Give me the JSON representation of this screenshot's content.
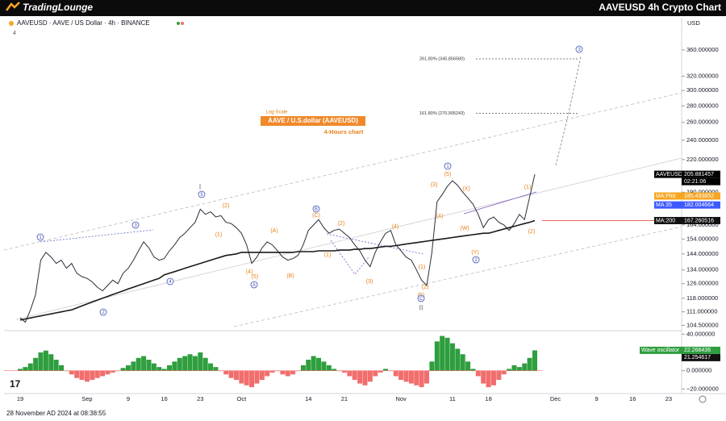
{
  "header": {
    "logo": "TradingLounge",
    "title": "AAVEUSD 4h Crypto Chart"
  },
  "footer": {
    "timestamp": "28 November AD 2024 at 08:38:55"
  },
  "chart_data": {
    "type": "line",
    "symbol": "AAVEUSD · AAVE / US Dollar · 4h · BINANCE",
    "indicator_count": "4",
    "currency": "USD",
    "annotations": {
      "scale": "Log-Scale",
      "subtitle": "AAVE / U.S.dollar (AAVEUSD)",
      "timeframe": "4-Hours chart"
    },
    "log_scale": true,
    "grid": false,
    "categories": [
      "19",
      null,
      null,
      null,
      null,
      null,
      null,
      null,
      null,
      null,
      null,
      null,
      null,
      "Sep",
      null,
      null,
      null,
      null,
      null,
      null,
      null,
      "9",
      null,
      null,
      null,
      null,
      null,
      null,
      "16",
      null,
      null,
      null,
      null,
      null,
      null,
      "23",
      null,
      null,
      null,
      null,
      null,
      null,
      null,
      "Oct",
      null,
      null,
      null,
      null,
      null,
      null,
      null,
      null,
      null,
      null,
      null,
      null,
      "14",
      null,
      null,
      null,
      null,
      null,
      null,
      "21",
      null,
      null,
      null,
      null,
      null,
      null,
      null,
      null,
      null,
      null,
      "Nov",
      null,
      null,
      null,
      null,
      null,
      null,
      null,
      null,
      null,
      "11",
      null,
      null,
      null,
      null,
      null,
      null,
      "18",
      null,
      null,
      null,
      null,
      null,
      null,
      null,
      null,
      null,
      null,
      null,
      null,
      "Dec",
      null,
      null,
      null,
      null,
      null,
      null,
      null,
      "9",
      null,
      null,
      null,
      null,
      null,
      null,
      "16",
      null,
      null,
      null,
      null,
      null,
      null,
      "23"
    ],
    "series": [
      {
        "name": "AAVEUSD",
        "color": "#2a2e39",
        "values": [
          108,
          106,
          112,
          120,
          140,
          145,
          142,
          138,
          140,
          135,
          138,
          132,
          130,
          129,
          127,
          124,
          122,
          125,
          128,
          126,
          132,
          135,
          140,
          146,
          152,
          148,
          142,
          140,
          141,
          146,
          150,
          155,
          158,
          162,
          166,
          176,
          172,
          174,
          170,
          171,
          166,
          165,
          162,
          158,
          150,
          138,
          142,
          148,
          152,
          150,
          146,
          142,
          140,
          141,
          143,
          150,
          160,
          164,
          168,
          162,
          158,
          160,
          161,
          158,
          155,
          150,
          146,
          140,
          136,
          145,
          152,
          158,
          160,
          150,
          146,
          142,
          140,
          134,
          128,
          125,
          145,
          182,
          188,
          195,
          200,
          196,
          190,
          185,
          180,
          172,
          162,
          168,
          170,
          166,
          164,
          160,
          165,
          172,
          168,
          186,
          205.881457,
          null,
          null,
          null,
          null,
          null,
          null,
          null,
          null,
          null,
          null,
          null,
          null,
          null,
          null,
          null,
          null,
          null,
          null,
          null,
          null,
          null,
          null,
          null,
          null,
          null,
          null
        ]
      },
      {
        "name": "MA:200",
        "color": "#1a1a1a",
        "values": [
          107,
          107.5,
          108,
          108.5,
          109,
          109.5,
          110,
          110.5,
          111,
          111.5,
          112,
          113,
          114,
          115,
          116,
          117,
          118,
          119,
          120,
          121,
          122,
          123,
          124,
          125,
          126,
          127,
          128,
          129,
          131,
          132,
          133,
          134,
          135,
          136,
          137,
          138,
          139,
          140,
          141,
          142,
          143,
          143.5,
          144,
          145,
          145,
          145,
          145,
          145,
          145,
          145,
          145,
          145,
          145,
          145,
          145.5,
          145.5,
          145.5,
          145.5,
          146,
          146,
          146,
          146,
          146.5,
          146.5,
          146.5,
          147,
          147,
          147.5,
          147.5,
          148,
          148.5,
          149,
          149,
          149.5,
          150,
          150.5,
          151,
          151.5,
          152,
          152.5,
          153,
          153.5,
          154,
          154.5,
          155,
          155.5,
          156,
          156.5,
          157,
          157.5,
          158,
          158,
          159,
          160,
          161,
          162,
          163,
          164,
          165,
          166,
          167.260516,
          null,
          null,
          null,
          null,
          null,
          null,
          null,
          null,
          null,
          null,
          null,
          null,
          null,
          null,
          null,
          null,
          null,
          null,
          null,
          null,
          null,
          null,
          null,
          null,
          null,
          null
        ]
      }
    ],
    "price_tags": [
      {
        "name": "MA:Plot",
        "value": 185.433852,
        "color": "#f5a623"
      },
      {
        "name": "MA 35",
        "value": 182.004664,
        "color": "#3d5afe"
      }
    ],
    "countdown": "02:21:06",
    "ylim": [
      102,
      416
    ],
    "yticks": [
      {
        "value": 360,
        "label": "360.000000"
      },
      {
        "value": 320,
        "label": "320.000000"
      },
      {
        "value": 300,
        "label": "300.000000"
      },
      {
        "value": 280,
        "label": "280.000000"
      },
      {
        "value": 260,
        "label": "260.000000"
      },
      {
        "value": 240,
        "label": "240.000000"
      },
      {
        "value": 220,
        "label": "220.000000"
      },
      {
        "value": 190,
        "label": "190.000000"
      },
      {
        "value": 164,
        "label": "164.000000"
      },
      {
        "value": 154,
        "label": "154.000000"
      },
      {
        "value": 144,
        "label": "144.000000"
      },
      {
        "value": 134,
        "label": "134.000000"
      },
      {
        "value": 126,
        "label": "126.000000"
      },
      {
        "value": 118,
        "label": "118.000000"
      },
      {
        "value": 111,
        "label": "111.000000"
      },
      {
        "value": 104.5,
        "label": "104.500000"
      }
    ],
    "fib_levels": [
      {
        "value": 345.85658,
        "label": "261.80% (345.856580)"
      },
      {
        "value": 270.905243,
        "label": "161.80% (270.905243)"
      }
    ],
    "wave_labels": [
      "(2)",
      "(1)",
      "(4)",
      "(5)",
      "(A)",
      "(B)",
      "(C)",
      "(1)",
      "(2)",
      "(3)",
      "(4)",
      "(1)",
      "(2)",
      "(5)",
      "(3)",
      "(4)",
      "(5)",
      "(X)",
      "(W)",
      "(Y)",
      "(1)",
      "(2)"
    ],
    "circled_labels": [
      "1",
      "2",
      "3",
      "4",
      "5",
      "A",
      "B",
      "C",
      "1",
      "2",
      "3"
    ],
    "degree_labels": [
      "I",
      "II"
    ],
    "oscillator": {
      "type": "bar",
      "name": "Wave oscillator",
      "positive_color": "#2e9e3e",
      "negative_color": "#f26d6d",
      "values": [
        2,
        4,
        8,
        14,
        20,
        22,
        18,
        12,
        6,
        0,
        -4,
        -8,
        -10,
        -12,
        -10,
        -8,
        -6,
        -4,
        -2,
        0,
        3,
        6,
        10,
        14,
        16,
        12,
        8,
        4,
        2,
        6,
        10,
        14,
        16,
        18,
        16,
        20,
        14,
        8,
        4,
        0,
        -4,
        -8,
        -10,
        -14,
        -16,
        -18,
        -14,
        -10,
        -6,
        -2,
        0,
        -4,
        -6,
        -4,
        0,
        6,
        12,
        16,
        14,
        10,
        6,
        2,
        0,
        -2,
        -6,
        -10,
        -14,
        -16,
        -12,
        -6,
        -2,
        2,
        0,
        -6,
        -10,
        -12,
        -14,
        -16,
        -18,
        -14,
        10,
        32,
        38,
        36,
        30,
        24,
        18,
        10,
        2,
        -6,
        -14,
        -18,
        -16,
        -10,
        -4,
        2,
        6,
        4,
        8,
        14,
        22.266436,
        null,
        null,
        null,
        null,
        null,
        null,
        null,
        null,
        null,
        null,
        null,
        null,
        null,
        null,
        null,
        null,
        null,
        null,
        null,
        null,
        null,
        null,
        null,
        null,
        null,
        null
      ],
      "signal_value": 21.254617,
      "ylim": [
        -25,
        42
      ],
      "yticks": [
        {
          "value": 40,
          "label": "40.000000"
        },
        {
          "value": 0,
          "label": "0.000000"
        },
        {
          "value": -20,
          "label": "−20.000000"
        }
      ]
    }
  }
}
